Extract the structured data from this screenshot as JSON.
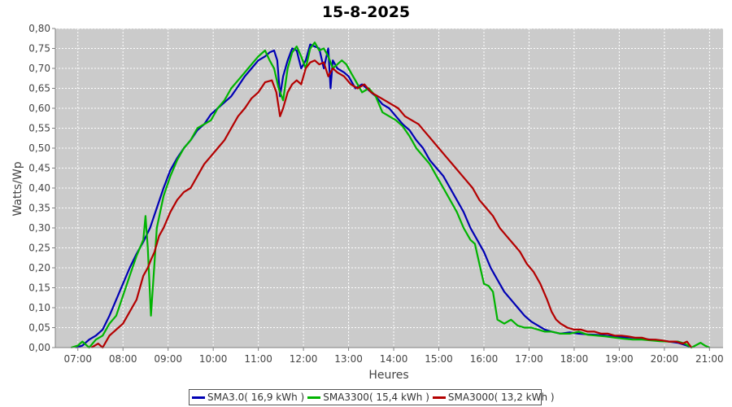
{
  "chart_data": {
    "type": "line",
    "title": "15-8-2025",
    "xlabel": "Heures",
    "ylabel": "Watts/Wp",
    "xlim": [
      6.5,
      21.3
    ],
    "ylim": [
      0.0,
      0.8
    ],
    "grid": true,
    "legend_position": "bottom",
    "x_ticks": [
      7,
      8,
      9,
      10,
      11,
      12,
      13,
      14,
      15,
      16,
      17,
      18,
      19,
      20,
      21
    ],
    "x_tick_labels": [
      "07:00",
      "08:00",
      "09:00",
      "10:00",
      "11:00",
      "12:00",
      "13:00",
      "14:00",
      "15:00",
      "16:00",
      "17:00",
      "18:00",
      "19:00",
      "20:00",
      "21:00"
    ],
    "y_ticks": [
      0.0,
      0.05,
      0.1,
      0.15,
      0.2,
      0.25,
      0.3,
      0.35,
      0.4,
      0.45,
      0.5,
      0.55,
      0.6,
      0.65,
      0.7,
      0.75,
      0.8
    ],
    "y_tick_labels": [
      "0,00",
      "0,05",
      "0,10",
      "0,15",
      "0,20",
      "0,25",
      "0,30",
      "0,35",
      "0,40",
      "0,45",
      "0,50",
      "0,55",
      "0,60",
      "0,65",
      "0,70",
      "0,75",
      "0,80"
    ],
    "series": [
      {
        "name": "SMA3.0( 16,9 kWh )",
        "color": "#0000b4",
        "points": [
          [
            6.95,
            0.0
          ],
          [
            7.1,
            0.005
          ],
          [
            7.25,
            0.02
          ],
          [
            7.4,
            0.03
          ],
          [
            7.55,
            0.045
          ],
          [
            7.7,
            0.08
          ],
          [
            7.85,
            0.12
          ],
          [
            8.0,
            0.16
          ],
          [
            8.15,
            0.2
          ],
          [
            8.3,
            0.235
          ],
          [
            8.45,
            0.265
          ],
          [
            8.6,
            0.3
          ],
          [
            8.75,
            0.35
          ],
          [
            8.9,
            0.4
          ],
          [
            9.05,
            0.445
          ],
          [
            9.2,
            0.475
          ],
          [
            9.35,
            0.5
          ],
          [
            9.5,
            0.52
          ],
          [
            9.65,
            0.545
          ],
          [
            9.8,
            0.56
          ],
          [
            9.95,
            0.585
          ],
          [
            10.1,
            0.6
          ],
          [
            10.25,
            0.615
          ],
          [
            10.4,
            0.63
          ],
          [
            10.55,
            0.655
          ],
          [
            10.7,
            0.68
          ],
          [
            10.85,
            0.7
          ],
          [
            11.0,
            0.72
          ],
          [
            11.15,
            0.73
          ],
          [
            11.25,
            0.74
          ],
          [
            11.35,
            0.745
          ],
          [
            11.42,
            0.72
          ],
          [
            11.48,
            0.63
          ],
          [
            11.55,
            0.68
          ],
          [
            11.65,
            0.72
          ],
          [
            11.75,
            0.75
          ],
          [
            11.85,
            0.745
          ],
          [
            11.95,
            0.7
          ],
          [
            12.05,
            0.72
          ],
          [
            12.15,
            0.76
          ],
          [
            12.25,
            0.755
          ],
          [
            12.35,
            0.75
          ],
          [
            12.45,
            0.7
          ],
          [
            12.55,
            0.75
          ],
          [
            12.6,
            0.65
          ],
          [
            12.65,
            0.72
          ],
          [
            12.75,
            0.7
          ],
          [
            12.9,
            0.69
          ],
          [
            13.0,
            0.68
          ],
          [
            13.15,
            0.65
          ],
          [
            13.3,
            0.66
          ],
          [
            13.45,
            0.645
          ],
          [
            13.6,
            0.63
          ],
          [
            13.75,
            0.61
          ],
          [
            13.9,
            0.6
          ],
          [
            14.05,
            0.58
          ],
          [
            14.2,
            0.56
          ],
          [
            14.35,
            0.545
          ],
          [
            14.5,
            0.52
          ],
          [
            14.65,
            0.5
          ],
          [
            14.8,
            0.47
          ],
          [
            14.95,
            0.45
          ],
          [
            15.1,
            0.43
          ],
          [
            15.25,
            0.4
          ],
          [
            15.4,
            0.37
          ],
          [
            15.55,
            0.34
          ],
          [
            15.7,
            0.3
          ],
          [
            15.85,
            0.27
          ],
          [
            16.0,
            0.24
          ],
          [
            16.15,
            0.2
          ],
          [
            16.3,
            0.17
          ],
          [
            16.45,
            0.14
          ],
          [
            16.6,
            0.12
          ],
          [
            16.75,
            0.1
          ],
          [
            16.9,
            0.08
          ],
          [
            17.05,
            0.065
          ],
          [
            17.2,
            0.055
          ],
          [
            17.35,
            0.045
          ],
          [
            17.5,
            0.04
          ],
          [
            17.7,
            0.035
          ],
          [
            17.9,
            0.038
          ],
          [
            18.1,
            0.035
          ],
          [
            18.3,
            0.033
          ],
          [
            18.5,
            0.032
          ],
          [
            18.7,
            0.03
          ],
          [
            18.9,
            0.028
          ],
          [
            19.1,
            0.026
          ],
          [
            19.3,
            0.025
          ],
          [
            19.5,
            0.022
          ],
          [
            19.7,
            0.02
          ],
          [
            19.9,
            0.018
          ],
          [
            20.1,
            0.015
          ],
          [
            20.3,
            0.012
          ],
          [
            20.5,
            0.005
          ],
          [
            20.6,
            0.0
          ]
        ]
      },
      {
        "name": "SMA3300( 15,4 kWh )",
        "color": "#00b400",
        "points": [
          [
            6.85,
            0.0
          ],
          [
            7.0,
            0.005
          ],
          [
            7.1,
            0.015
          ],
          [
            7.25,
            0.0
          ],
          [
            7.4,
            0.02
          ],
          [
            7.55,
            0.03
          ],
          [
            7.7,
            0.06
          ],
          [
            7.85,
            0.08
          ],
          [
            8.0,
            0.13
          ],
          [
            8.15,
            0.18
          ],
          [
            8.3,
            0.23
          ],
          [
            8.45,
            0.27
          ],
          [
            8.5,
            0.33
          ],
          [
            8.55,
            0.25
          ],
          [
            8.62,
            0.08
          ],
          [
            8.68,
            0.18
          ],
          [
            8.75,
            0.3
          ],
          [
            8.9,
            0.38
          ],
          [
            9.05,
            0.43
          ],
          [
            9.2,
            0.47
          ],
          [
            9.35,
            0.5
          ],
          [
            9.5,
            0.52
          ],
          [
            9.65,
            0.55
          ],
          [
            9.8,
            0.56
          ],
          [
            9.95,
            0.57
          ],
          [
            10.1,
            0.6
          ],
          [
            10.25,
            0.62
          ],
          [
            10.4,
            0.65
          ],
          [
            10.55,
            0.67
          ],
          [
            10.7,
            0.69
          ],
          [
            10.85,
            0.71
          ],
          [
            11.0,
            0.73
          ],
          [
            11.15,
            0.745
          ],
          [
            11.25,
            0.72
          ],
          [
            11.35,
            0.7
          ],
          [
            11.45,
            0.65
          ],
          [
            11.55,
            0.62
          ],
          [
            11.65,
            0.7
          ],
          [
            11.75,
            0.74
          ],
          [
            11.85,
            0.755
          ],
          [
            11.95,
            0.73
          ],
          [
            12.05,
            0.7
          ],
          [
            12.15,
            0.75
          ],
          [
            12.25,
            0.765
          ],
          [
            12.35,
            0.745
          ],
          [
            12.45,
            0.75
          ],
          [
            12.55,
            0.73
          ],
          [
            12.65,
            0.7
          ],
          [
            12.75,
            0.71
          ],
          [
            12.85,
            0.72
          ],
          [
            12.95,
            0.71
          ],
          [
            13.05,
            0.69
          ],
          [
            13.15,
            0.67
          ],
          [
            13.3,
            0.64
          ],
          [
            13.45,
            0.65
          ],
          [
            13.6,
            0.63
          ],
          [
            13.75,
            0.59
          ],
          [
            13.9,
            0.58
          ],
          [
            14.05,
            0.57
          ],
          [
            14.2,
            0.555
          ],
          [
            14.35,
            0.53
          ],
          [
            14.5,
            0.5
          ],
          [
            14.65,
            0.48
          ],
          [
            14.8,
            0.46
          ],
          [
            14.95,
            0.43
          ],
          [
            15.1,
            0.4
          ],
          [
            15.25,
            0.37
          ],
          [
            15.4,
            0.34
          ],
          [
            15.55,
            0.3
          ],
          [
            15.7,
            0.27
          ],
          [
            15.8,
            0.26
          ],
          [
            15.9,
            0.21
          ],
          [
            16.0,
            0.16
          ],
          [
            16.1,
            0.155
          ],
          [
            16.2,
            0.14
          ],
          [
            16.3,
            0.07
          ],
          [
            16.45,
            0.06
          ],
          [
            16.6,
            0.07
          ],
          [
            16.75,
            0.055
          ],
          [
            16.9,
            0.05
          ],
          [
            17.05,
            0.05
          ],
          [
            17.2,
            0.045
          ],
          [
            17.35,
            0.04
          ],
          [
            17.5,
            0.04
          ],
          [
            17.7,
            0.035
          ],
          [
            17.9,
            0.035
          ],
          [
            18.1,
            0.04
          ],
          [
            18.3,
            0.032
          ],
          [
            18.5,
            0.03
          ],
          [
            18.7,
            0.028
          ],
          [
            18.9,
            0.025
          ],
          [
            19.1,
            0.022
          ],
          [
            19.3,
            0.02
          ],
          [
            19.5,
            0.02
          ],
          [
            19.7,
            0.018
          ],
          [
            19.9,
            0.016
          ],
          [
            20.1,
            0.015
          ],
          [
            20.3,
            0.015
          ],
          [
            20.45,
            0.01
          ],
          [
            20.6,
            0.0
          ],
          [
            20.8,
            0.012
          ],
          [
            20.9,
            0.005
          ],
          [
            21.0,
            0.0
          ]
        ]
      },
      {
        "name": "SMA3000( 13,2 kWh )",
        "color": "#b40000",
        "points": [
          [
            7.3,
            0.0
          ],
          [
            7.45,
            0.01
          ],
          [
            7.55,
            0.0
          ],
          [
            7.7,
            0.03
          ],
          [
            7.85,
            0.045
          ],
          [
            8.0,
            0.06
          ],
          [
            8.15,
            0.09
          ],
          [
            8.3,
            0.12
          ],
          [
            8.45,
            0.18
          ],
          [
            8.55,
            0.2
          ],
          [
            8.62,
            0.22
          ],
          [
            8.7,
            0.24
          ],
          [
            8.8,
            0.28
          ],
          [
            8.9,
            0.3
          ],
          [
            9.05,
            0.34
          ],
          [
            9.2,
            0.37
          ],
          [
            9.35,
            0.39
          ],
          [
            9.5,
            0.4
          ],
          [
            9.65,
            0.43
          ],
          [
            9.8,
            0.46
          ],
          [
            9.95,
            0.48
          ],
          [
            10.1,
            0.5
          ],
          [
            10.25,
            0.52
          ],
          [
            10.4,
            0.55
          ],
          [
            10.55,
            0.58
          ],
          [
            10.7,
            0.6
          ],
          [
            10.85,
            0.625
          ],
          [
            11.0,
            0.64
          ],
          [
            11.15,
            0.665
          ],
          [
            11.3,
            0.67
          ],
          [
            11.4,
            0.64
          ],
          [
            11.48,
            0.58
          ],
          [
            11.55,
            0.6
          ],
          [
            11.65,
            0.64
          ],
          [
            11.75,
            0.66
          ],
          [
            11.85,
            0.67
          ],
          [
            11.95,
            0.66
          ],
          [
            12.05,
            0.7
          ],
          [
            12.15,
            0.715
          ],
          [
            12.25,
            0.72
          ],
          [
            12.35,
            0.71
          ],
          [
            12.45,
            0.715
          ],
          [
            12.55,
            0.68
          ],
          [
            12.65,
            0.7
          ],
          [
            12.75,
            0.69
          ],
          [
            12.9,
            0.68
          ],
          [
            13.05,
            0.66
          ],
          [
            13.2,
            0.65
          ],
          [
            13.35,
            0.66
          ],
          [
            13.5,
            0.64
          ],
          [
            13.65,
            0.63
          ],
          [
            13.8,
            0.62
          ],
          [
            13.95,
            0.61
          ],
          [
            14.1,
            0.6
          ],
          [
            14.25,
            0.58
          ],
          [
            14.4,
            0.57
          ],
          [
            14.55,
            0.56
          ],
          [
            14.7,
            0.54
          ],
          [
            14.85,
            0.52
          ],
          [
            15.0,
            0.5
          ],
          [
            15.15,
            0.48
          ],
          [
            15.3,
            0.46
          ],
          [
            15.45,
            0.44
          ],
          [
            15.6,
            0.42
          ],
          [
            15.75,
            0.4
          ],
          [
            15.9,
            0.37
          ],
          [
            16.05,
            0.35
          ],
          [
            16.2,
            0.33
          ],
          [
            16.35,
            0.3
          ],
          [
            16.5,
            0.28
          ],
          [
            16.65,
            0.26
          ],
          [
            16.8,
            0.24
          ],
          [
            16.95,
            0.21
          ],
          [
            17.1,
            0.19
          ],
          [
            17.25,
            0.16
          ],
          [
            17.4,
            0.12
          ],
          [
            17.5,
            0.09
          ],
          [
            17.6,
            0.07
          ],
          [
            17.7,
            0.06
          ],
          [
            17.85,
            0.05
          ],
          [
            18.0,
            0.045
          ],
          [
            18.15,
            0.045
          ],
          [
            18.3,
            0.04
          ],
          [
            18.45,
            0.04
          ],
          [
            18.6,
            0.035
          ],
          [
            18.75,
            0.035
          ],
          [
            18.9,
            0.03
          ],
          [
            19.05,
            0.03
          ],
          [
            19.2,
            0.028
          ],
          [
            19.35,
            0.025
          ],
          [
            19.5,
            0.025
          ],
          [
            19.65,
            0.02
          ],
          [
            19.8,
            0.02
          ],
          [
            19.95,
            0.018
          ],
          [
            20.1,
            0.015
          ],
          [
            20.25,
            0.015
          ],
          [
            20.4,
            0.01
          ],
          [
            20.5,
            0.015
          ],
          [
            20.6,
            0.0
          ]
        ]
      }
    ]
  }
}
